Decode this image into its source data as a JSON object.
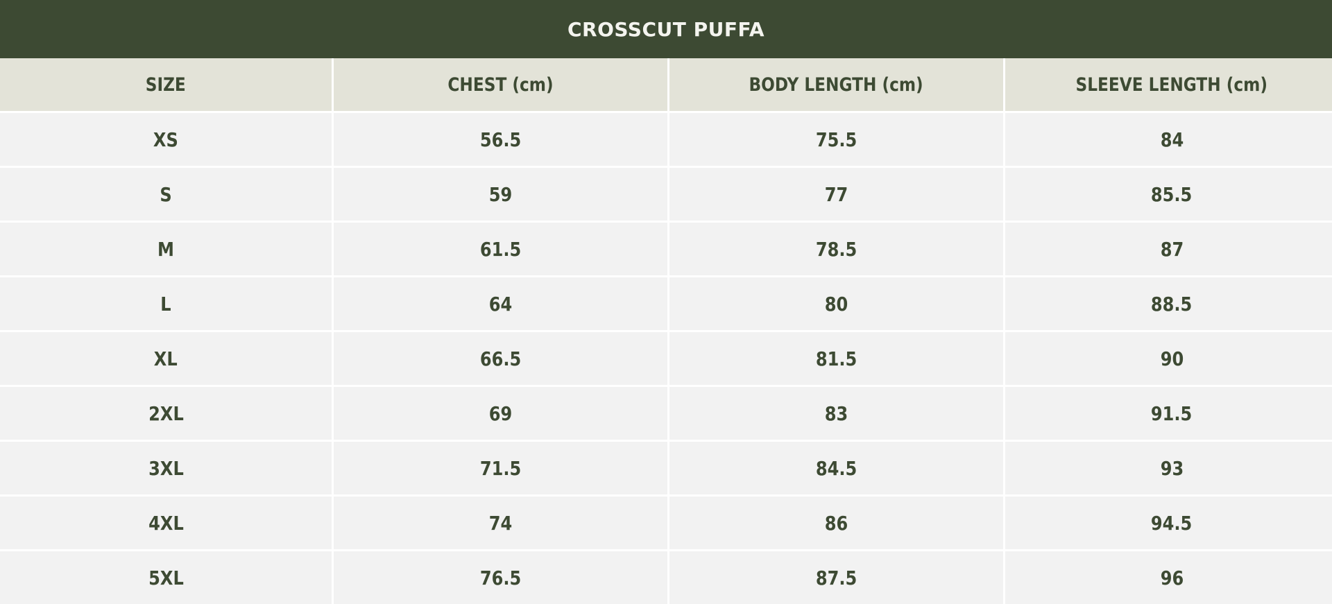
{
  "title": "CROSSCUT PUFFA",
  "colors": {
    "title_bg": "#3d4a33",
    "title_text": "#f4f4ef",
    "header_bg": "#e3e3d8",
    "cell_bg": "#f2f2f2",
    "text": "#3d4a33",
    "grid_lines": "#ffffff"
  },
  "table": {
    "headers": [
      "SIZE",
      "CHEST (cm)",
      "BODY LENGTH (cm)",
      "SLEEVE LENGTH (cm)"
    ],
    "rows": [
      [
        "XS",
        "56.5",
        "75.5",
        "84"
      ],
      [
        "S",
        "59",
        "77",
        "85.5"
      ],
      [
        "M",
        "61.5",
        "78.5",
        "87"
      ],
      [
        "L",
        "64",
        "80",
        "88.5"
      ],
      [
        "XL",
        "66.5",
        "81.5",
        "90"
      ],
      [
        "2XL",
        "69",
        "83",
        "91.5"
      ],
      [
        "3XL",
        "71.5",
        "84.5",
        "93"
      ],
      [
        "4XL",
        "74",
        "86",
        "94.5"
      ],
      [
        "5XL",
        "76.5",
        "87.5",
        "96"
      ]
    ]
  }
}
